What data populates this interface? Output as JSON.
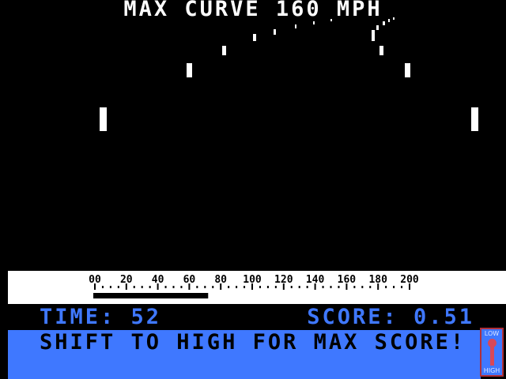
{
  "title": "MAX CURVE 160 MPH",
  "speedometer": {
    "min": 0,
    "max": 200,
    "labels": [
      "00",
      "20",
      "40",
      "60",
      "80",
      "100",
      "120",
      "140",
      "160",
      "180",
      "200"
    ],
    "current_speed": 72
  },
  "status": {
    "time_text": "TIME: 52",
    "score_text": "SCORE: 0.51"
  },
  "message": "SHIFT TO HIGH FOR MAX SCORE!",
  "gear": {
    "low_label": "LOW",
    "high_label": "HIGH",
    "current": "low"
  },
  "colors": {
    "accent": "#3f78ff",
    "background": "#000000",
    "marker": "#ffffff",
    "gear_handle": "#d84858"
  }
}
